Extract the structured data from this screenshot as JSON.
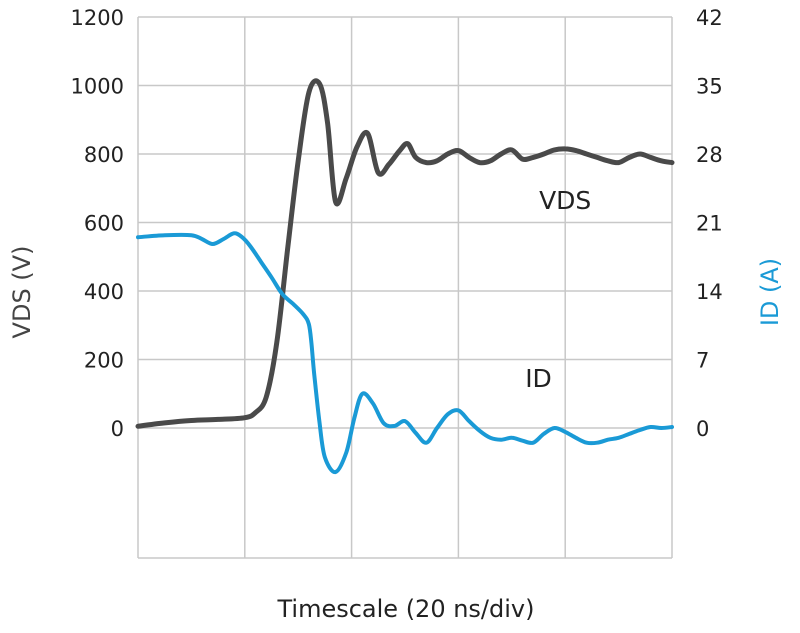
{
  "chart_data": {
    "type": "line",
    "title": "",
    "xlabel": "Timescale (20 ns/div)",
    "ylabel_left": "VDS (V)",
    "ylabel_right": "ID (A)",
    "x_unit": "ns",
    "x_range": [
      0,
      100
    ],
    "ylim_left": [
      -380,
      1200
    ],
    "ylim_right": [
      -13.3,
      42
    ],
    "yticks_left": [
      "1200",
      "1000",
      "800",
      "600",
      "400",
      "200",
      "0"
    ],
    "yticks_right": [
      "42",
      "35",
      "28",
      "21",
      "14",
      "7",
      "0"
    ],
    "grid": true,
    "colors": {
      "vds": "#4a4a4a",
      "id": "#1a9ad6",
      "grid": "#c8c8c8",
      "ylabel_left": "#444444",
      "ylabel_right": "#1a9ad6"
    },
    "series": [
      {
        "name": "VDS",
        "axis": "left",
        "x": [
          0,
          5,
          10,
          15,
          20,
          22,
          24,
          26,
          28,
          30,
          32,
          34,
          35.5,
          37,
          39,
          41,
          43,
          45,
          47,
          49,
          50.5,
          52,
          54,
          56,
          58,
          60,
          62,
          64,
          66,
          68,
          70,
          72,
          74,
          76,
          78,
          80,
          82,
          84,
          86,
          88,
          90,
          92,
          94,
          96,
          98,
          100
        ],
        "values": [
          5,
          15,
          22,
          25,
          30,
          45,
          90,
          250,
          520,
          780,
          980,
          1005,
          890,
          660,
          730,
          820,
          860,
          745,
          770,
          810,
          830,
          790,
          775,
          780,
          800,
          810,
          790,
          775,
          780,
          800,
          812,
          785,
          790,
          800,
          812,
          815,
          810,
          800,
          790,
          780,
          775,
          790,
          800,
          790,
          780,
          775
        ]
      },
      {
        "name": "ID",
        "axis": "right",
        "x": [
          0,
          5,
          10,
          12,
          14,
          16,
          18,
          19.5,
          21,
          23,
          25,
          27,
          29,
          31,
          32,
          32.5,
          33,
          34,
          35,
          37,
          39,
          40.5,
          42,
          44,
          46,
          48,
          50,
          52,
          54,
          56,
          58,
          60,
          62,
          64,
          66,
          68,
          70,
          72,
          74,
          76,
          78,
          80,
          82,
          84,
          86,
          88,
          90,
          92,
          94,
          96,
          98,
          100
        ],
        "values": [
          19.5,
          19.7,
          19.7,
          19.3,
          18.8,
          19.3,
          19.9,
          19.5,
          18.6,
          17.0,
          15.4,
          13.7,
          12.7,
          11.6,
          10.6,
          8.5,
          5.5,
          0.5,
          -3.0,
          -4.5,
          -2.5,
          1.0,
          3.5,
          2.5,
          0.5,
          0.2,
          0.7,
          -0.5,
          -1.5,
          0.0,
          1.4,
          1.8,
          0.7,
          -0.3,
          -1.0,
          -1.2,
          -1.0,
          -1.3,
          -1.5,
          -0.6,
          0.0,
          -0.4,
          -1.0,
          -1.5,
          -1.5,
          -1.2,
          -1.0,
          -0.6,
          -0.2,
          0.1,
          0.0,
          0.1
        ]
      }
    ],
    "annotations": [
      {
        "text": "VDS",
        "series": "VDS",
        "x": 80,
        "y_left": 640
      },
      {
        "text": "ID",
        "series": "ID",
        "x": 75,
        "y_left": 120
      }
    ]
  }
}
